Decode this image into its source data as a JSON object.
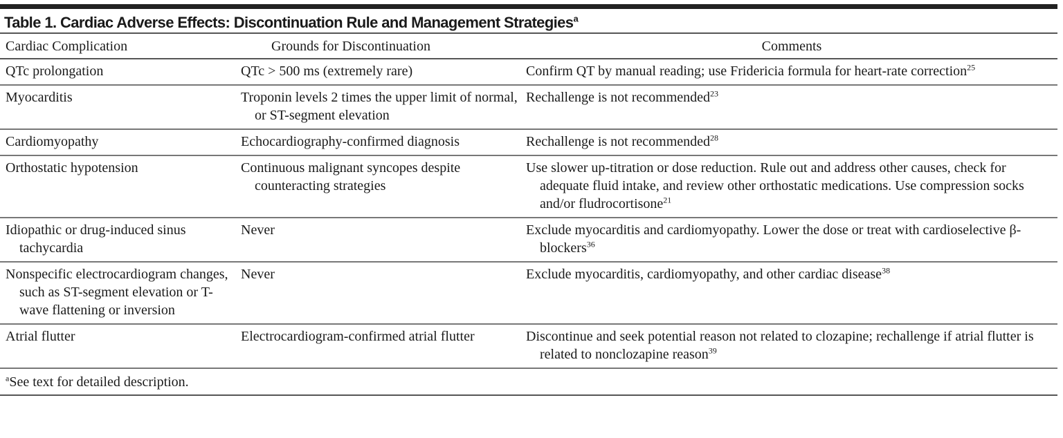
{
  "title": "Table 1. Cardiac Adverse Effects: Discontinuation Rule and Management Strategies",
  "title_sup": "a",
  "columns": [
    "Cardiac Complication",
    "Grounds for Discontinuation",
    "Comments"
  ],
  "rows": [
    {
      "complication": "QTc prolongation",
      "grounds": "QTc > 500 ms (extremely rare)",
      "comments": "Confirm QT by manual reading; use Fridericia formula for heart-rate correction",
      "ref": "25"
    },
    {
      "complication": "Myocarditis",
      "grounds": "Troponin levels 2 times the upper limit of normal, or ST-segment elevation",
      "comments": "Rechallenge is not recommended",
      "ref": "23"
    },
    {
      "complication": "Cardiomyopathy",
      "grounds": "Echocardiography-confirmed diagnosis",
      "comments": "Rechallenge is not recommended",
      "ref": "28"
    },
    {
      "complication": "Orthostatic hypotension",
      "grounds": "Continuous malignant syncopes despite counteracting strategies",
      "comments": "Use slower up-titration or dose reduction. Rule out and address other causes, check for adequate fluid intake, and review other orthostatic medications. Use compression socks and/or fludrocortisone",
      "ref": "21"
    },
    {
      "complication": "Idiopathic or drug-induced sinus tachycardia",
      "grounds": "Never",
      "comments": "Exclude myocarditis and cardiomyopathy. Lower the dose or treat with cardioselective β-blockers",
      "ref": "36"
    },
    {
      "complication": "Nonspecific electrocardiogram changes, such as ST-segment elevation or T-wave flattening or inversion",
      "grounds": "Never",
      "comments": "Exclude myocarditis, cardiomyopathy, and other cardiac disease",
      "ref": "38"
    },
    {
      "complication": "Atrial flutter",
      "grounds": "Electrocardiogram-confirmed atrial flutter",
      "comments": "Discontinue and seek potential reason not related to clozapine; rechallenge if atrial flutter is related to nonclozapine reason",
      "ref": "39"
    }
  ],
  "footnote_mark": "a",
  "footnote": "See text for detailed description."
}
